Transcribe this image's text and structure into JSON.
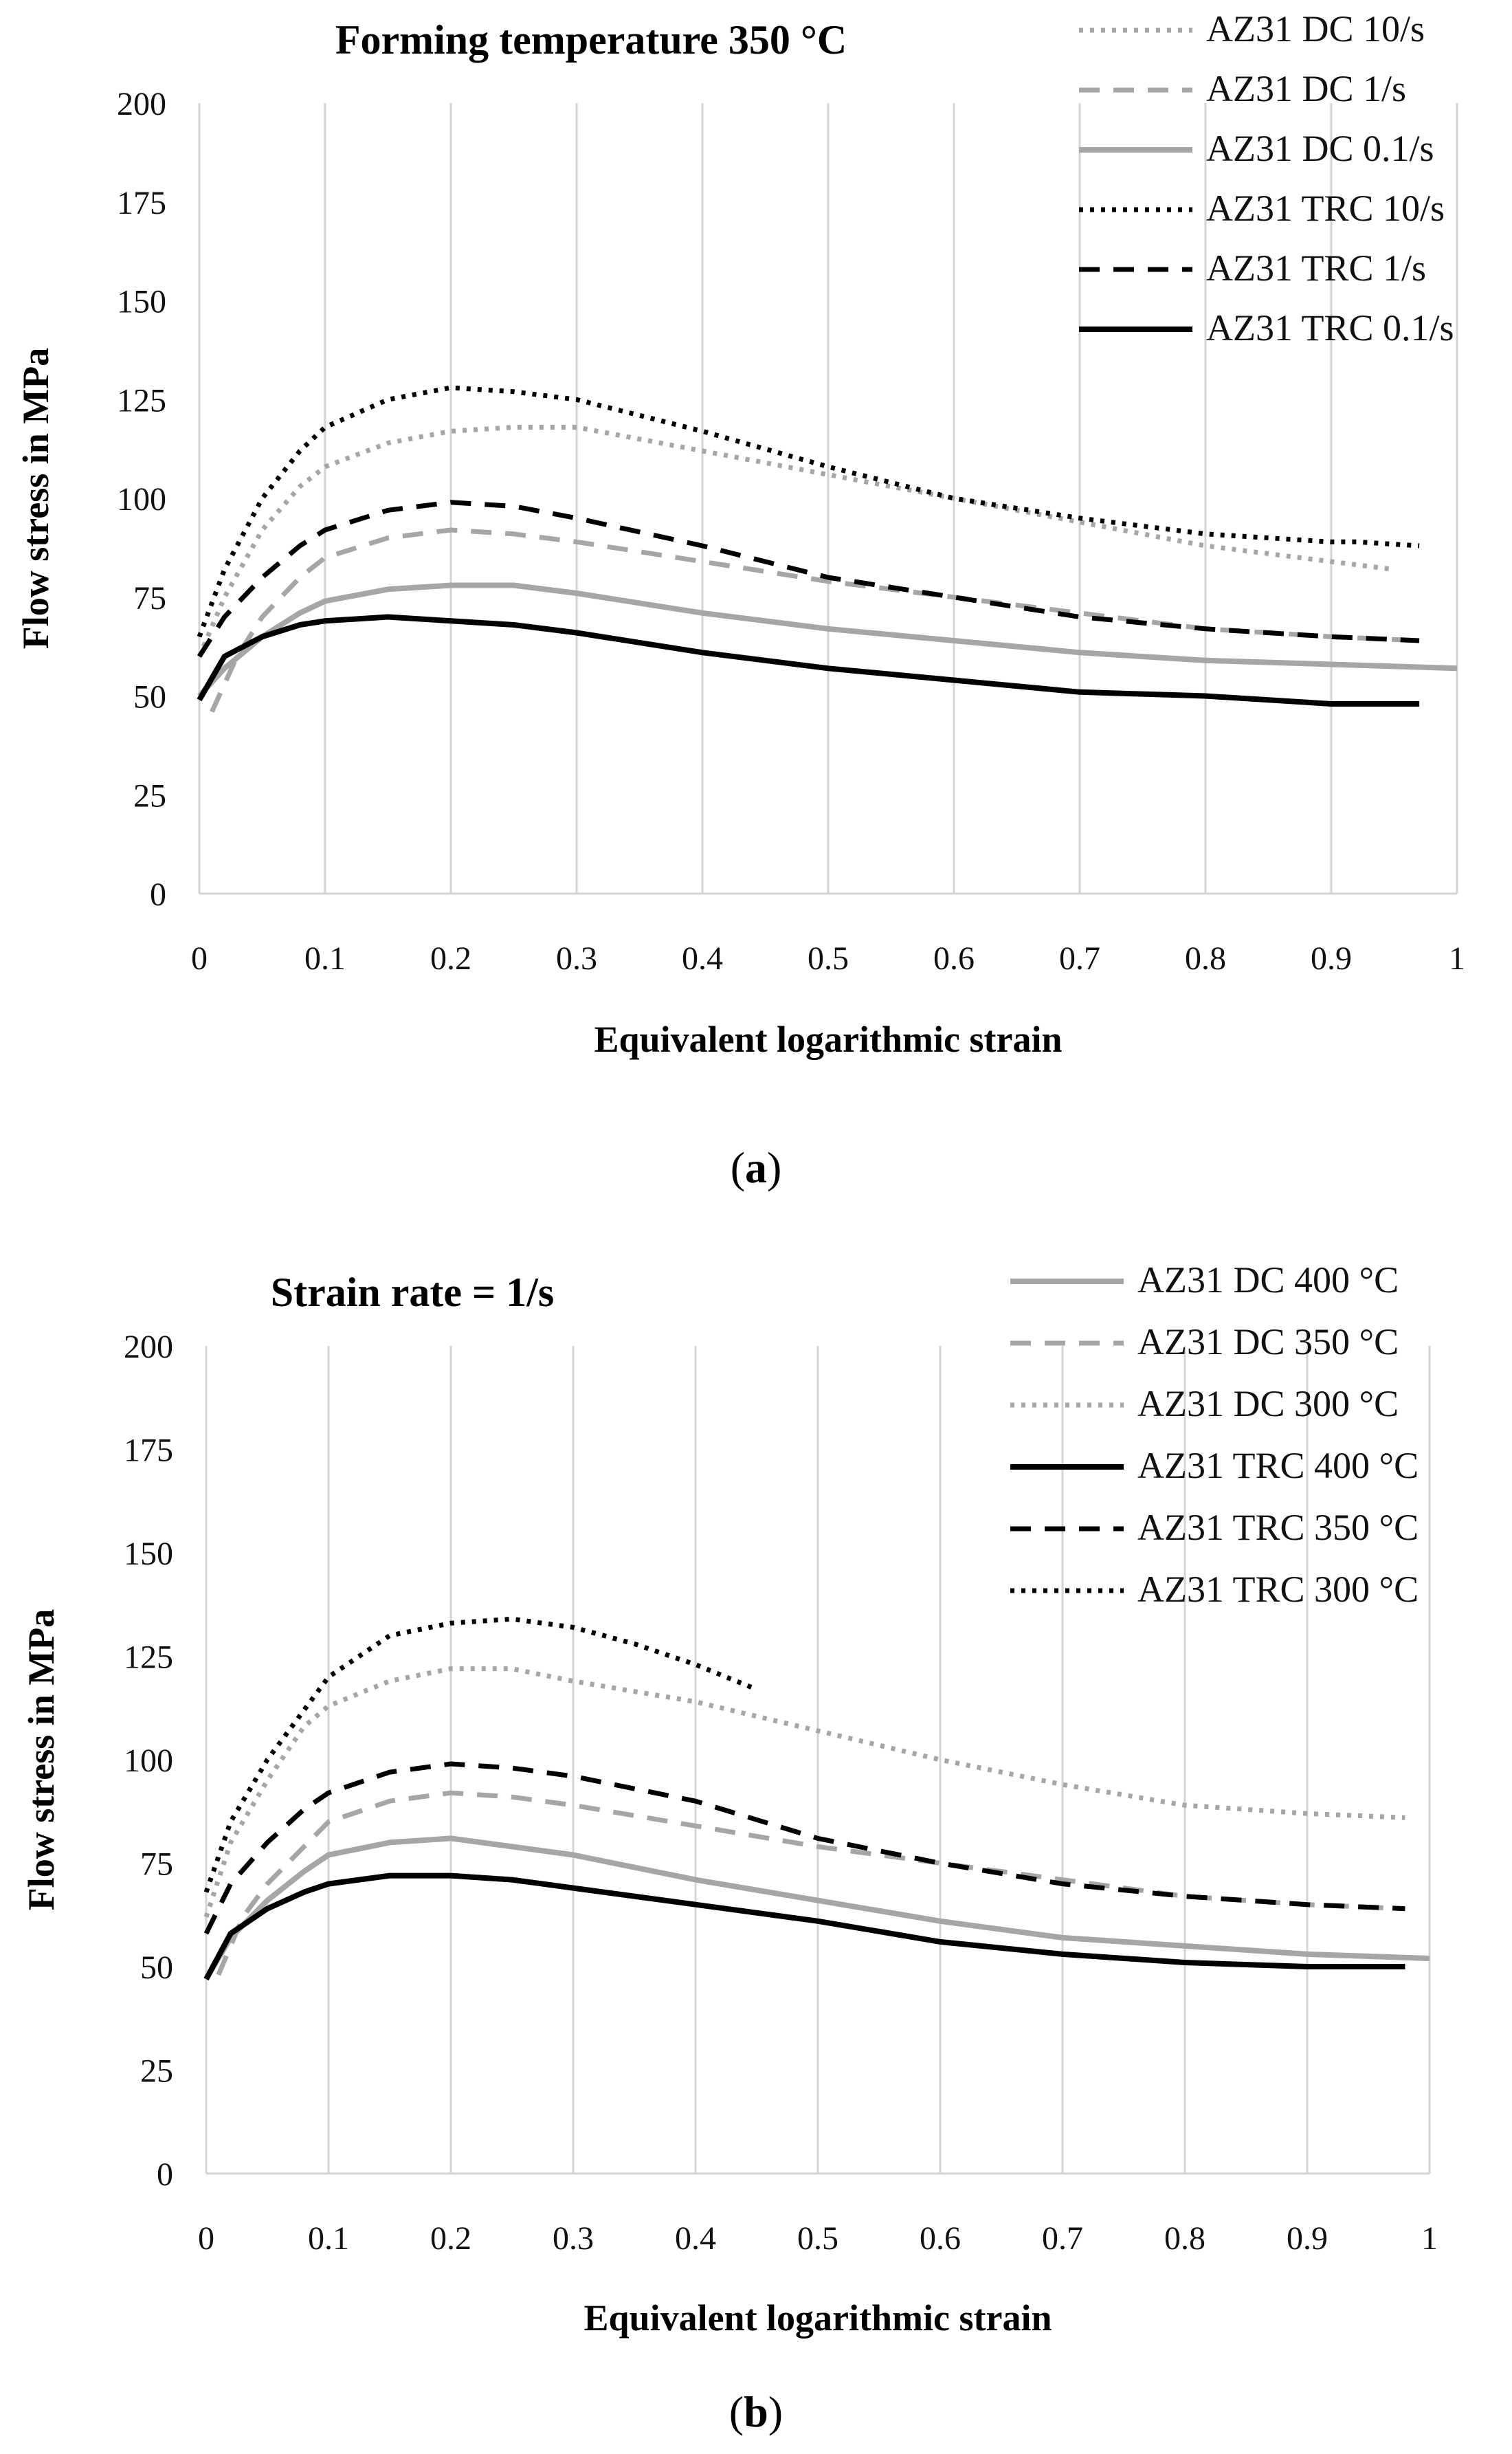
{
  "chart_data": [
    {
      "type": "line",
      "panel": "a",
      "caption_letter": "a",
      "title": "Forming temperature 350 °C",
      "xlabel": "Equivalent logarithmic strain",
      "ylabel": "Flow stress in MPa",
      "xlim": [
        0,
        1
      ],
      "ylim": [
        0,
        200
      ],
      "xticks": [
        "0",
        "0.1",
        "0.2",
        "0.3",
        "0.4",
        "0.5",
        "0.6",
        "0.7",
        "0.8",
        "0.9",
        "1"
      ],
      "yticks": [
        "0",
        "25",
        "50",
        "75",
        "100",
        "125",
        "150",
        "175",
        "200"
      ],
      "grid": "vertical",
      "legend_position": "top-right",
      "series": [
        {
          "name": "AZ31 DC 10/s",
          "color": "#a6a6a6",
          "style": "dotted",
          "x": [
            0,
            0.02,
            0.05,
            0.08,
            0.1,
            0.15,
            0.2,
            0.25,
            0.3,
            0.4,
            0.5,
            0.6,
            0.7,
            0.8,
            0.9,
            0.95
          ],
          "y": [
            60,
            75,
            92,
            103,
            108,
            114,
            117,
            118,
            118,
            112,
            106,
            100,
            94,
            88,
            84,
            82
          ]
        },
        {
          "name": "AZ31 DC 1/s",
          "color": "#a6a6a6",
          "style": "dashed",
          "x": [
            0.01,
            0.03,
            0.05,
            0.08,
            0.1,
            0.15,
            0.2,
            0.25,
            0.3,
            0.4,
            0.5,
            0.6,
            0.7,
            0.8,
            0.9,
            0.97
          ],
          "y": [
            46,
            60,
            70,
            80,
            85,
            90,
            92,
            91,
            89,
            84,
            79,
            75,
            71,
            67,
            65,
            64
          ]
        },
        {
          "name": "AZ31 DC 0.1/s",
          "color": "#a6a6a6",
          "style": "solid",
          "x": [
            0,
            0.02,
            0.05,
            0.08,
            0.1,
            0.15,
            0.2,
            0.25,
            0.3,
            0.4,
            0.5,
            0.6,
            0.7,
            0.8,
            0.9,
            1.0
          ],
          "y": [
            50,
            57,
            65,
            71,
            74,
            77,
            78,
            78,
            76,
            71,
            67,
            64,
            61,
            59,
            58,
            57
          ]
        },
        {
          "name": "AZ31 TRC 10/s",
          "color": "#000000",
          "style": "dotted",
          "x": [
            0,
            0.02,
            0.05,
            0.08,
            0.1,
            0.15,
            0.2,
            0.25,
            0.3,
            0.4,
            0.5,
            0.6,
            0.7,
            0.8,
            0.9,
            0.92,
            0.97
          ],
          "y": [
            65,
            82,
            100,
            112,
            118,
            125,
            128,
            127,
            125,
            117,
            108,
            100,
            95,
            91,
            89,
            89,
            88
          ]
        },
        {
          "name": "AZ31 TRC 1/s",
          "color": "#000000",
          "style": "dashed",
          "x": [
            0,
            0.02,
            0.05,
            0.08,
            0.1,
            0.15,
            0.2,
            0.25,
            0.3,
            0.4,
            0.5,
            0.6,
            0.7,
            0.8,
            0.9,
            0.97
          ],
          "y": [
            60,
            70,
            80,
            88,
            92,
            97,
            99,
            98,
            95,
            88,
            80,
            75,
            70,
            67,
            65,
            64
          ]
        },
        {
          "name": "AZ31 TRC 0.1/s",
          "color": "#000000",
          "style": "solid",
          "x": [
            0,
            0.02,
            0.05,
            0.08,
            0.1,
            0.15,
            0.2,
            0.25,
            0.3,
            0.4,
            0.5,
            0.6,
            0.7,
            0.8,
            0.9,
            0.97
          ],
          "y": [
            49,
            60,
            65,
            68,
            69,
            70,
            69,
            68,
            66,
            61,
            57,
            54,
            51,
            50,
            48,
            48
          ]
        }
      ]
    },
    {
      "type": "line",
      "panel": "b",
      "caption_letter": "b",
      "title": "Strain rate = 1/s",
      "xlabel": "Equivalent logarithmic strain",
      "ylabel": "Flow stress in MPa",
      "xlim": [
        0,
        1
      ],
      "ylim": [
        0,
        200
      ],
      "xticks": [
        "0",
        "0.1",
        "0.2",
        "0.3",
        "0.4",
        "0.5",
        "0.6",
        "0.7",
        "0.8",
        "0.9",
        "1"
      ],
      "yticks": [
        "0",
        "25",
        "50",
        "75",
        "100",
        "125",
        "150",
        "175",
        "200"
      ],
      "grid": "vertical",
      "legend_position": "top-right",
      "series": [
        {
          "name": "AZ31 DC 400 °C",
          "color": "#a6a6a6",
          "style": "solid",
          "x": [
            0,
            0.02,
            0.05,
            0.08,
            0.1,
            0.15,
            0.2,
            0.25,
            0.3,
            0.4,
            0.5,
            0.6,
            0.7,
            0.8,
            0.9,
            1.0
          ],
          "y": [
            47,
            57,
            66,
            73,
            77,
            80,
            81,
            79,
            77,
            71,
            66,
            61,
            57,
            55,
            53,
            52
          ]
        },
        {
          "name": "AZ31 DC 350 °C",
          "color": "#a6a6a6",
          "style": "dashed",
          "x": [
            0.01,
            0.03,
            0.05,
            0.08,
            0.1,
            0.15,
            0.2,
            0.25,
            0.3,
            0.4,
            0.5,
            0.6,
            0.7,
            0.8,
            0.9,
            0.98
          ],
          "y": [
            48,
            62,
            70,
            79,
            85,
            90,
            92,
            91,
            89,
            84,
            79,
            75,
            71,
            67,
            65,
            64
          ]
        },
        {
          "name": "AZ31 DC 300 °C",
          "color": "#a6a6a6",
          "style": "dotted",
          "x": [
            0,
            0.02,
            0.05,
            0.08,
            0.1,
            0.15,
            0.2,
            0.25,
            0.3,
            0.4,
            0.5,
            0.6,
            0.7,
            0.8,
            0.9,
            0.98
          ],
          "y": [
            62,
            80,
            95,
            108,
            113,
            119,
            122,
            122,
            119,
            114,
            107,
            100,
            94,
            89,
            87,
            86
          ]
        },
        {
          "name": "AZ31 TRC 400 °C",
          "color": "#000000",
          "style": "solid",
          "x": [
            0,
            0.02,
            0.05,
            0.08,
            0.1,
            0.15,
            0.2,
            0.25,
            0.3,
            0.4,
            0.5,
            0.6,
            0.7,
            0.8,
            0.9,
            0.98
          ],
          "y": [
            47,
            58,
            64,
            68,
            70,
            72,
            72,
            71,
            69,
            65,
            61,
            56,
            53,
            51,
            50,
            50
          ]
        },
        {
          "name": "AZ31 TRC 350 °C",
          "color": "#000000",
          "style": "dashed",
          "x": [
            0,
            0.02,
            0.05,
            0.08,
            0.1,
            0.15,
            0.2,
            0.25,
            0.3,
            0.4,
            0.5,
            0.6,
            0.7,
            0.8,
            0.9,
            0.98
          ],
          "y": [
            58,
            70,
            80,
            88,
            92,
            97,
            99,
            98,
            96,
            90,
            81,
            75,
            70,
            67,
            65,
            64
          ]
        },
        {
          "name": "AZ31 TRC 300 °C",
          "color": "#000000",
          "style": "dotted",
          "x": [
            0,
            0.02,
            0.05,
            0.08,
            0.1,
            0.15,
            0.2,
            0.25,
            0.3,
            0.35,
            0.4,
            0.45
          ],
          "y": [
            68,
            85,
            100,
            112,
            120,
            130,
            133,
            134,
            132,
            128,
            123,
            117
          ]
        }
      ]
    }
  ]
}
